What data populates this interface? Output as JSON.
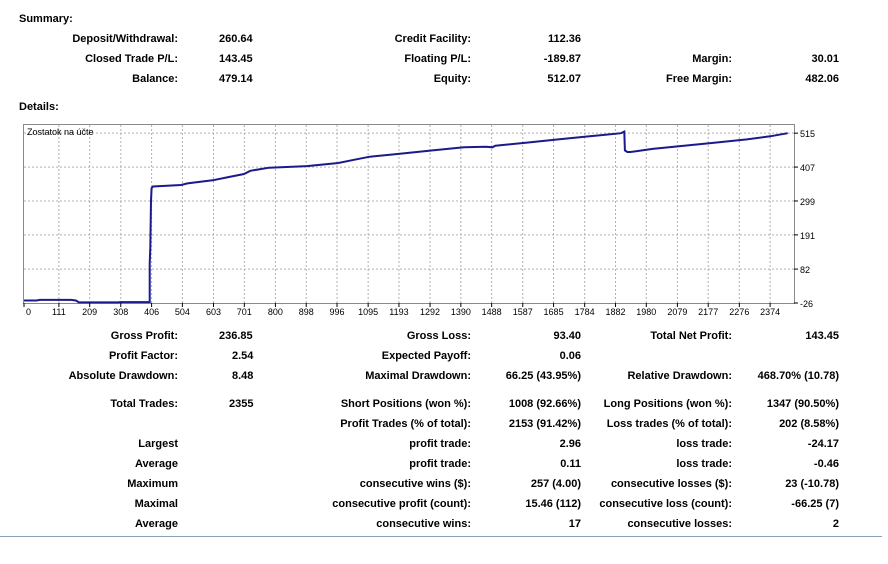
{
  "summary": {
    "title": "Summary:",
    "deposit_withdrawal": {
      "label": "Deposit/Withdrawal:",
      "value": "260.64"
    },
    "closed_trade_pl": {
      "label": "Closed Trade P/L:",
      "value": "143.45"
    },
    "balance": {
      "label": "Balance:",
      "value": "479.14"
    },
    "credit_facility": {
      "label": "Credit Facility:",
      "value": "112.36"
    },
    "floating_pl": {
      "label": "Floating P/L:",
      "value": "-189.87"
    },
    "equity": {
      "label": "Equity:",
      "value": "512.07"
    },
    "margin": {
      "label": "Margin:",
      "value": "30.01"
    },
    "free_margin": {
      "label": "Free Margin:",
      "value": "482.06"
    }
  },
  "details": {
    "title": "Details:"
  },
  "chart_data": {
    "type": "line",
    "title": "Zostatok na účte",
    "ylim": [
      -26,
      541
    ],
    "xlim": [
      0,
      2450
    ],
    "y_ticks": [
      "515",
      "407",
      "299",
      "191",
      "82",
      "-26"
    ],
    "x_ticks": [
      "0",
      "111",
      "209",
      "308",
      "406",
      "504",
      "603",
      "701",
      "800",
      "898",
      "996",
      "1095",
      "1193",
      "1292",
      "1390",
      "1488",
      "1587",
      "1685",
      "1784",
      "1882",
      "1980",
      "2079",
      "2177",
      "2276",
      "2374"
    ],
    "grid": true,
    "line_color": "#1a1a8c",
    "series": [
      {
        "x": [
          0,
          40,
          50,
          150,
          165,
          175,
          300,
          305,
          390,
          400,
          400,
          402,
          404,
          406,
          410,
          500,
          520,
          600,
          650,
          700,
          720,
          780,
          900,
          1000,
          1050,
          1100,
          1200,
          1300,
          1400,
          1470,
          1490,
          1500,
          1600,
          1700,
          1800,
          1850,
          1900,
          1910,
          1912,
          1920,
          1930,
          1950,
          2000,
          2100,
          2200,
          2300,
          2374,
          2430
        ],
        "y": [
          -18,
          -18,
          -16,
          -16,
          -18,
          -24,
          -24,
          -23,
          -23,
          -23,
          100,
          150,
          300,
          340,
          345,
          350,
          355,
          365,
          375,
          385,
          395,
          405,
          410,
          420,
          430,
          440,
          450,
          460,
          470,
          472,
          470,
          475,
          485,
          495,
          505,
          510,
          515,
          520,
          460,
          455,
          455,
          458,
          465,
          475,
          485,
          495,
          505,
          515
        ]
      }
    ]
  },
  "stats": {
    "gross_profit": {
      "label": "Gross Profit:",
      "value": "236.85"
    },
    "gross_loss": {
      "label": "Gross Loss:",
      "value": "93.40"
    },
    "total_net_profit": {
      "label": "Total Net Profit:",
      "value": "143.45"
    },
    "profit_factor": {
      "label": "Profit Factor:",
      "value": "2.54"
    },
    "expected_payoff": {
      "label": "Expected Payoff:",
      "value": "0.06"
    },
    "absolute_drawdown": {
      "label": "Absolute Drawdown:",
      "value": "8.48"
    },
    "maximal_drawdown": {
      "label": "Maximal Drawdown:",
      "value": "66.25 (43.95%)"
    },
    "relative_drawdown": {
      "label": "Relative Drawdown:",
      "value": "468.70% (10.78)"
    },
    "total_trades": {
      "label": "Total Trades:",
      "value": "2355"
    },
    "short_positions": {
      "label": "Short Positions (won %):",
      "value": "1008 (92.66%)"
    },
    "long_positions": {
      "label": "Long Positions (won %):",
      "value": "1347 (90.50%)"
    },
    "profit_trades": {
      "label": "Profit Trades (% of total):",
      "value": "2153 (91.42%)"
    },
    "loss_trades": {
      "label": "Loss trades (% of total):",
      "value": "202 (8.58%)"
    },
    "largest": {
      "label": "Largest",
      "mid_label": "profit trade:",
      "mid_value": "2.96",
      "right_label": "loss trade:",
      "right_value": "-24.17"
    },
    "average": {
      "label": "Average",
      "mid_label": "profit trade:",
      "mid_value": "0.11",
      "right_label": "loss trade:",
      "right_value": "-0.46"
    },
    "maximum": {
      "label": "Maximum",
      "mid_label": "consecutive wins ($):",
      "mid_value": "257 (4.00)",
      "right_label": "consecutive losses ($):",
      "right_value": "23 (-10.78)"
    },
    "maximal": {
      "label": "Maximal",
      "mid_label": "consecutive profit (count):",
      "mid_value": "15.46 (112)",
      "right_label": "consecutive loss (count):",
      "right_value": "-66.25 (7)"
    },
    "average2": {
      "label": "Average",
      "mid_label": "consecutive wins:",
      "mid_value": "17",
      "right_label": "consecutive losses:",
      "right_value": "2"
    }
  }
}
